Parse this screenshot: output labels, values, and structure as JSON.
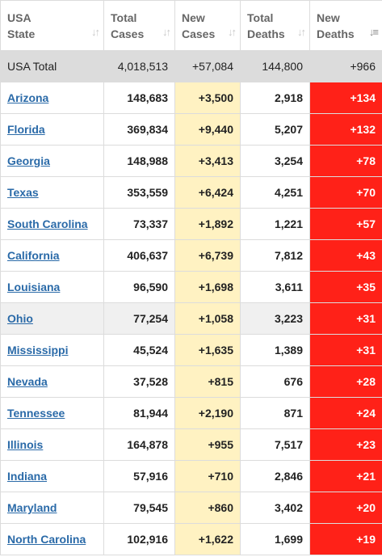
{
  "columns": [
    {
      "line1": "USA",
      "line2": "State"
    },
    {
      "line1": "Total",
      "line2": "Cases"
    },
    {
      "line1": "New",
      "line2": "Cases"
    },
    {
      "line1": "Total",
      "line2": "Deaths"
    },
    {
      "line1": "New",
      "line2": "Deaths"
    }
  ],
  "total_row": {
    "state": "USA Total",
    "total_cases": "4,018,513",
    "new_cases": "+57,084",
    "total_deaths": "144,800",
    "new_deaths": "+966"
  },
  "rows": [
    {
      "state": "Arizona",
      "total_cases": "148,683",
      "new_cases": "+3,500",
      "total_deaths": "2,918",
      "new_deaths": "+134"
    },
    {
      "state": "Florida",
      "total_cases": "369,834",
      "new_cases": "+9,440",
      "total_deaths": "5,207",
      "new_deaths": "+132"
    },
    {
      "state": "Georgia",
      "total_cases": "148,988",
      "new_cases": "+3,413",
      "total_deaths": "3,254",
      "new_deaths": "+78"
    },
    {
      "state": "Texas",
      "total_cases": "353,559",
      "new_cases": "+6,424",
      "total_deaths": "4,251",
      "new_deaths": "+70"
    },
    {
      "state": "South Carolina",
      "total_cases": "73,337",
      "new_cases": "+1,892",
      "total_deaths": "1,221",
      "new_deaths": "+57"
    },
    {
      "state": "California",
      "total_cases": "406,637",
      "new_cases": "+6,739",
      "total_deaths": "7,812",
      "new_deaths": "+43"
    },
    {
      "state": "Louisiana",
      "total_cases": "96,590",
      "new_cases": "+1,698",
      "total_deaths": "3,611",
      "new_deaths": "+35"
    },
    {
      "state": "Ohio",
      "total_cases": "77,254",
      "new_cases": "+1,058",
      "total_deaths": "3,223",
      "new_deaths": "+31"
    },
    {
      "state": "Mississippi",
      "total_cases": "45,524",
      "new_cases": "+1,635",
      "total_deaths": "1,389",
      "new_deaths": "+31"
    },
    {
      "state": "Nevada",
      "total_cases": "37,528",
      "new_cases": "+815",
      "total_deaths": "676",
      "new_deaths": "+28"
    },
    {
      "state": "Tennessee",
      "total_cases": "81,944",
      "new_cases": "+2,190",
      "total_deaths": "871",
      "new_deaths": "+24"
    },
    {
      "state": "Illinois",
      "total_cases": "164,878",
      "new_cases": "+955",
      "total_deaths": "7,517",
      "new_deaths": "+23"
    },
    {
      "state": "Indiana",
      "total_cases": "57,916",
      "new_cases": "+710",
      "total_deaths": "2,846",
      "new_deaths": "+21"
    },
    {
      "state": "Maryland",
      "total_cases": "79,545",
      "new_cases": "+860",
      "total_deaths": "3,402",
      "new_deaths": "+20"
    },
    {
      "state": "North Carolina",
      "total_cases": "102,916",
      "new_cases": "+1,622",
      "total_deaths": "1,699",
      "new_deaths": "+19"
    }
  ],
  "highlighted_row": "Ohio",
  "sorted_column": "New Deaths",
  "sort_direction": "descending",
  "colors": {
    "new_cases_bg": "#fff2c2",
    "new_deaths_bg": "#ff2118",
    "total_row_bg": "#dcdcdc",
    "link": "#2a6aa8"
  }
}
